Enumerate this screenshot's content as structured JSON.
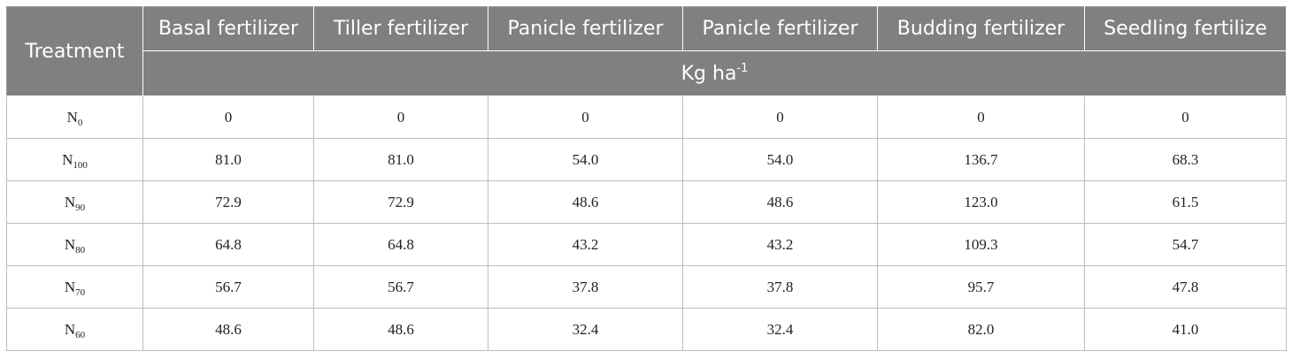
{
  "table": {
    "row_header_label": "Treatment",
    "columns": [
      "Basal fertilizer",
      "Tiller fertilizer",
      "Panicle fertilizer",
      "Panicle fertilizer",
      "Budding fertilizer",
      "Seedling fertilize"
    ],
    "unit_base": "Kg ha",
    "unit_exp": "-1",
    "rows": [
      {
        "sym": "N",
        "sub": "0",
        "values": [
          "0",
          "0",
          "0",
          "0",
          "0",
          "0"
        ]
      },
      {
        "sym": "N",
        "sub": "100",
        "values": [
          "81.0",
          "81.0",
          "54.0",
          "54.0",
          "136.7",
          "68.3"
        ]
      },
      {
        "sym": "N",
        "sub": "90",
        "values": [
          "72.9",
          "72.9",
          "48.6",
          "48.6",
          "123.0",
          "61.5"
        ]
      },
      {
        "sym": "N",
        "sub": "80",
        "values": [
          "64.8",
          "64.8",
          "43.2",
          "43.2",
          "109.3",
          "54.7"
        ]
      },
      {
        "sym": "N",
        "sub": "70",
        "values": [
          "56.7",
          "56.7",
          "37.8",
          "37.8",
          "95.7",
          "47.8"
        ]
      },
      {
        "sym": "N",
        "sub": "60",
        "values": [
          "48.6",
          "48.6",
          "32.4",
          "32.4",
          "82.0",
          "41.0"
        ]
      }
    ]
  }
}
